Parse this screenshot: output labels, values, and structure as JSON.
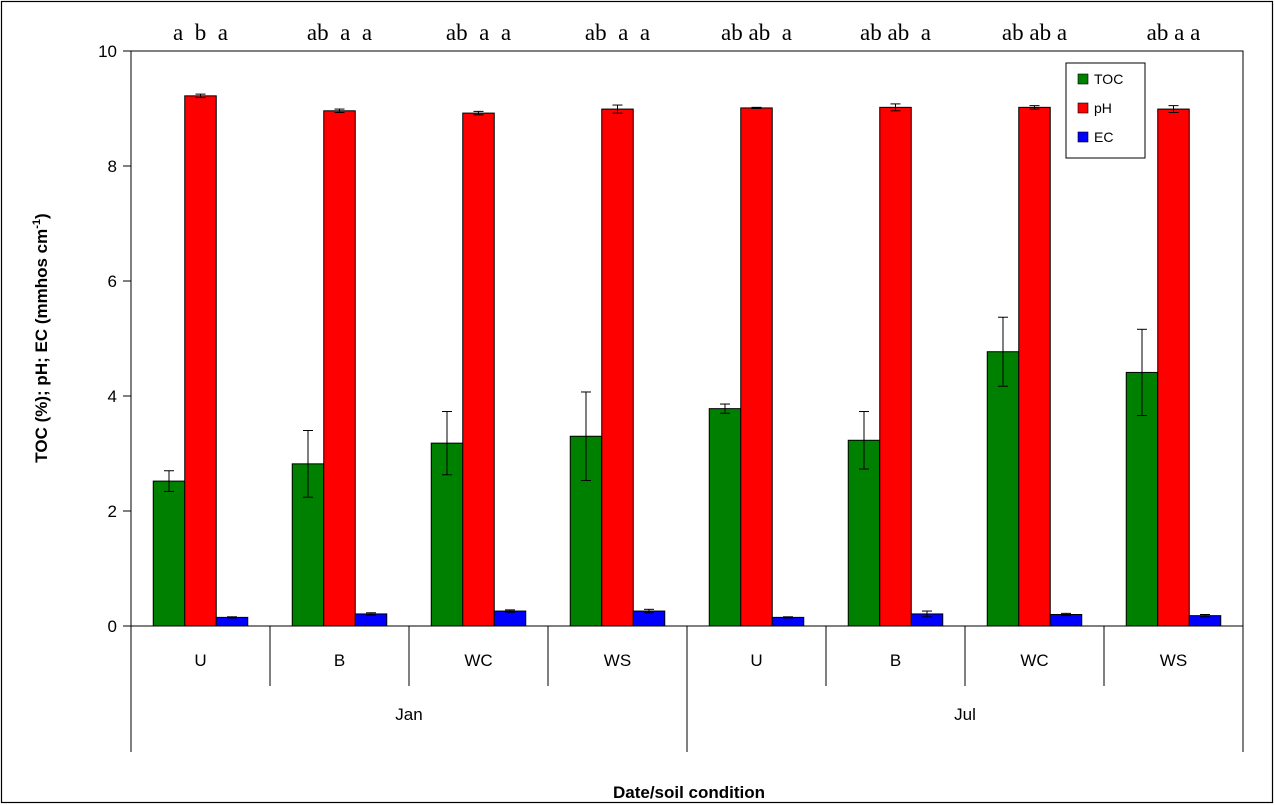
{
  "chart_data": {
    "type": "bar",
    "xlabel": "Date/soil condition",
    "ylabel": "TOC (%); pH; EC (mmhos cm",
    "ylabel_superscript": "-1",
    "ylabel_suffix": ")",
    "ylim": [
      0,
      10
    ],
    "yticks": [
      0,
      2,
      4,
      6,
      8,
      10
    ],
    "grid": false,
    "legend_position": "top-right",
    "categories": [
      "U",
      "B",
      "WC",
      "WS",
      "U",
      "B",
      "WC",
      "WS"
    ],
    "groups": [
      {
        "label": "Jan",
        "span": 4
      },
      {
        "label": "Jul",
        "span": 4
      }
    ],
    "significance_letters": [
      "a  b  a",
      "ab  a  a",
      "ab  a  a",
      "ab  a  a",
      "ab ab  a",
      "ab ab  a",
      "ab ab a",
      "ab a a"
    ],
    "series": [
      {
        "name": "TOC",
        "color": "#008000",
        "values": [
          2.52,
          2.82,
          3.18,
          3.3,
          3.78,
          3.23,
          4.77,
          4.41
        ],
        "errors": [
          0.18,
          0.58,
          0.55,
          0.77,
          0.08,
          0.5,
          0.6,
          0.75
        ]
      },
      {
        "name": "pH",
        "color": "#ff0000",
        "values": [
          9.22,
          8.96,
          8.92,
          8.99,
          9.01,
          9.02,
          9.02,
          8.99
        ],
        "errors": [
          0.03,
          0.03,
          0.03,
          0.07,
          0.01,
          0.06,
          0.03,
          0.06
        ]
      },
      {
        "name": "EC",
        "color": "#0000ff",
        "values": [
          0.15,
          0.21,
          0.26,
          0.26,
          0.15,
          0.21,
          0.2,
          0.18
        ],
        "errors": [
          0.01,
          0.02,
          0.02,
          0.03,
          0.01,
          0.05,
          0.02,
          0.02
        ]
      }
    ]
  }
}
